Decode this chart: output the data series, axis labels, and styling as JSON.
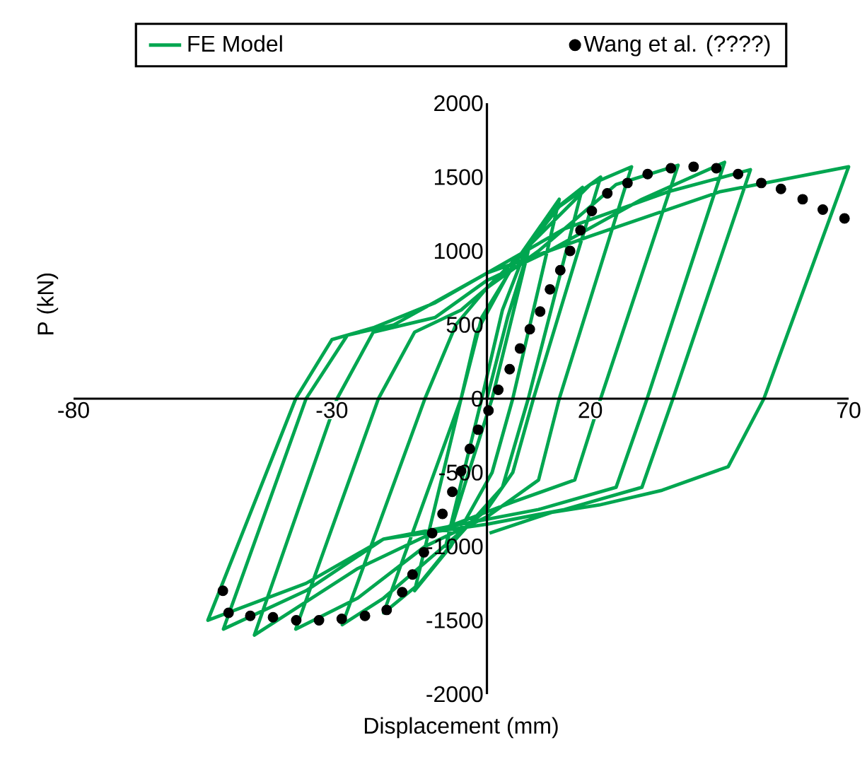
{
  "chart_data": {
    "type": "line",
    "xlabel": "Displacement (mm)",
    "ylabel": "P (kN)",
    "xlim": [
      -80,
      70
    ],
    "xticks": [
      -80,
      -30,
      20,
      70
    ],
    "ylim": [
      -2000,
      2000
    ],
    "yticks": [
      -2000,
      -1500,
      -1000,
      -500,
      0,
      500,
      1000,
      1500,
      2000
    ],
    "legend": "top",
    "series": [
      {
        "name": "FE Model",
        "type": "line",
        "color": "#00a650",
        "marker": "none",
        "line_style": "solid",
        "x": [
          0,
          4,
          8,
          1,
          -4,
          -8,
          -1,
          3,
          8,
          14,
          5,
          1,
          -7,
          -14,
          -5,
          -1,
          6,
          12,
          18.5,
          8,
          3,
          -6,
          -13,
          -20,
          -5,
          -2,
          5,
          14,
          22,
          9,
          5,
          0,
          -10,
          -20,
          -28,
          -12,
          -6,
          0,
          10,
          20,
          28,
          14,
          10,
          0,
          -12,
          -25,
          -37,
          -21,
          -14,
          -5,
          0,
          10,
          25,
          37,
          22,
          17,
          5,
          -10,
          -25,
          -45,
          -29,
          -22,
          -10,
          0,
          12,
          30,
          46,
          31,
          25,
          10,
          -5,
          -20,
          -35,
          -51,
          -35,
          -27,
          -18,
          0,
          15,
          35,
          51,
          36,
          30,
          15,
          0,
          -20,
          -35,
          -54,
          -37,
          -30,
          -22,
          -10,
          0,
          20,
          45,
          70,
          53.6,
          46.7,
          33.9,
          21.7,
          12.5,
          0.5
        ],
        "values": [
          0,
          550,
          1000,
          0,
          -550,
          -1000,
          0,
          600,
          1050,
          1350,
          0,
          -500,
          -1000,
          -1300,
          0,
          550,
          950,
          1250,
          1430,
          0,
          -600,
          -950,
          -1250,
          -1450,
          0,
          450,
          900,
          1300,
          1500,
          0,
          -500,
          -750,
          -1050,
          -1350,
          -1530,
          0,
          500,
          750,
          1100,
          1450,
          1570,
          0,
          -550,
          -800,
          -1000,
          -1350,
          -1560,
          0,
          450,
          600,
          750,
          1000,
          1450,
          1580,
          0,
          -550,
          -700,
          -900,
          -1150,
          -1600,
          0,
          450,
          550,
          800,
          1000,
          1350,
          1600,
          0,
          -600,
          -750,
          -850,
          -950,
          -1300,
          -1560,
          0,
          430,
          500,
          850,
          1150,
          1400,
          1550,
          0,
          -600,
          -750,
          -850,
          -950,
          -1250,
          -1500,
          0,
          400,
          480,
          650,
          850,
          1100,
          1400,
          1570,
          0,
          -460,
          -620,
          -720,
          -770,
          -910
        ]
      },
      {
        "name": "Wang et al. (????)",
        "type": "scatter",
        "color": "#000000",
        "marker": "circle",
        "x": [
          -51.1,
          -50,
          -45.8,
          -41.4,
          -36.9,
          -32.5,
          -28.1,
          -23.6,
          -19.4,
          -16.4,
          -14.4,
          -12.2,
          -10.6,
          -8.6,
          -6.7,
          -5,
          -3.3,
          -1.7,
          0.3,
          2.2,
          4.4,
          6.4,
          8.3,
          10.3,
          12.2,
          14.2,
          16.1,
          18.1,
          20.3,
          23.3,
          27.2,
          31.1,
          35.6,
          40,
          44.4,
          48.6,
          53.1,
          56.9,
          61.1,
          65,
          69.2
        ],
        "values": [
          -1300,
          -1450,
          -1470,
          -1480,
          -1500,
          -1500,
          -1490,
          -1470,
          -1430,
          -1310,
          -1190,
          -1040,
          -910,
          -780,
          -630,
          -490,
          -340,
          -210,
          -80,
          60,
          200,
          340,
          470,
          590,
          740,
          870,
          1000,
          1140,
          1270,
          1390,
          1460,
          1520,
          1560,
          1570,
          1560,
          1520,
          1460,
          1420,
          1350,
          1280,
          1220
        ]
      }
    ]
  }
}
